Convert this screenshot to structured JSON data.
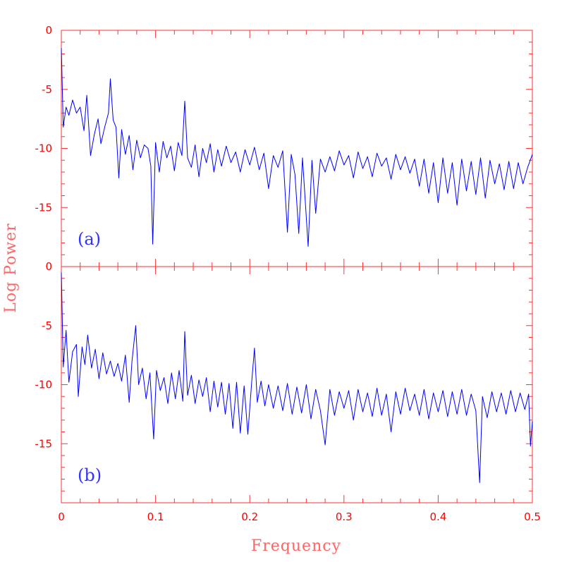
{
  "colors": {
    "axis": "#ff3333",
    "tick_text": "#ff0000",
    "axis_title": "#ff6666",
    "series": "#0000ff",
    "panel_label": "#3333ff"
  },
  "chart_data": {
    "type": "line",
    "xlabel": "Frequency",
    "ylabel": "Log Power",
    "xlim": [
      0,
      0.5
    ],
    "ylim": [
      -20,
      0
    ],
    "x_ticks": [
      "0",
      "0.1",
      "0.2",
      "0.3",
      "0.4",
      "0.5"
    ],
    "y_ticks": [
      "0",
      "-5",
      "-10",
      "-15"
    ],
    "panels": [
      {
        "label": "(a)",
        "points": [
          [
            0.0,
            -1.5
          ],
          [
            0.002,
            -8.2
          ],
          [
            0.005,
            -6.5
          ],
          [
            0.008,
            -7.2
          ],
          [
            0.012,
            -5.9
          ],
          [
            0.016,
            -7.0
          ],
          [
            0.02,
            -6.5
          ],
          [
            0.024,
            -8.5
          ],
          [
            0.027,
            -5.5
          ],
          [
            0.031,
            -10.6
          ],
          [
            0.035,
            -8.8
          ],
          [
            0.039,
            -7.5
          ],
          [
            0.042,
            -9.6
          ],
          [
            0.046,
            -8.2
          ],
          [
            0.05,
            -7.0
          ],
          [
            0.052,
            -4.1
          ],
          [
            0.055,
            -7.6
          ],
          [
            0.058,
            -8.2
          ],
          [
            0.061,
            -12.5
          ],
          [
            0.064,
            -8.4
          ],
          [
            0.068,
            -10.5
          ],
          [
            0.072,
            -8.9
          ],
          [
            0.076,
            -11.8
          ],
          [
            0.08,
            -9.3
          ],
          [
            0.084,
            -10.8
          ],
          [
            0.088,
            -9.7
          ],
          [
            0.092,
            -10.0
          ],
          [
            0.095,
            -11.5
          ],
          [
            0.097,
            -18.1
          ],
          [
            0.1,
            -9.5
          ],
          [
            0.104,
            -12.0
          ],
          [
            0.108,
            -9.4
          ],
          [
            0.112,
            -10.8
          ],
          [
            0.116,
            -9.8
          ],
          [
            0.12,
            -11.9
          ],
          [
            0.124,
            -9.5
          ],
          [
            0.128,
            -10.6
          ],
          [
            0.131,
            -6.0
          ],
          [
            0.134,
            -10.8
          ],
          [
            0.138,
            -11.6
          ],
          [
            0.142,
            -9.7
          ],
          [
            0.146,
            -12.4
          ],
          [
            0.15,
            -10.0
          ],
          [
            0.154,
            -11.2
          ],
          [
            0.158,
            -9.6
          ],
          [
            0.162,
            -12.0
          ],
          [
            0.166,
            -10.1
          ],
          [
            0.17,
            -11.5
          ],
          [
            0.175,
            -9.8
          ],
          [
            0.18,
            -11.2
          ],
          [
            0.185,
            -10.3
          ],
          [
            0.19,
            -12.0
          ],
          [
            0.195,
            -10.1
          ],
          [
            0.2,
            -11.4
          ],
          [
            0.205,
            -9.9
          ],
          [
            0.21,
            -11.8
          ],
          [
            0.215,
            -10.4
          ],
          [
            0.22,
            -13.4
          ],
          [
            0.225,
            -10.6
          ],
          [
            0.23,
            -11.6
          ],
          [
            0.235,
            -10.2
          ],
          [
            0.24,
            -17.1
          ],
          [
            0.244,
            -10.5
          ],
          [
            0.248,
            -12.2
          ],
          [
            0.252,
            -17.2
          ],
          [
            0.256,
            -10.8
          ],
          [
            0.262,
            -18.3
          ],
          [
            0.266,
            -11.0
          ],
          [
            0.27,
            -15.5
          ],
          [
            0.275,
            -10.9
          ],
          [
            0.28,
            -12.0
          ],
          [
            0.285,
            -10.7
          ],
          [
            0.29,
            -11.9
          ],
          [
            0.295,
            -10.2
          ],
          [
            0.3,
            -11.4
          ],
          [
            0.305,
            -10.6
          ],
          [
            0.31,
            -12.5
          ],
          [
            0.315,
            -10.3
          ],
          [
            0.32,
            -11.7
          ],
          [
            0.325,
            -10.7
          ],
          [
            0.33,
            -12.4
          ],
          [
            0.335,
            -10.4
          ],
          [
            0.34,
            -11.5
          ],
          [
            0.345,
            -10.8
          ],
          [
            0.35,
            -12.6
          ],
          [
            0.355,
            -10.5
          ],
          [
            0.36,
            -11.8
          ],
          [
            0.365,
            -10.7
          ],
          [
            0.37,
            -12.1
          ],
          [
            0.375,
            -10.9
          ],
          [
            0.38,
            -13.2
          ],
          [
            0.385,
            -10.9
          ],
          [
            0.39,
            -13.8
          ],
          [
            0.395,
            -11.2
          ],
          [
            0.4,
            -14.6
          ],
          [
            0.405,
            -10.8
          ],
          [
            0.41,
            -13.8
          ],
          [
            0.415,
            -11.2
          ],
          [
            0.42,
            -14.8
          ],
          [
            0.425,
            -10.9
          ],
          [
            0.43,
            -13.6
          ],
          [
            0.435,
            -11.1
          ],
          [
            0.44,
            -13.9
          ],
          [
            0.445,
            -10.8
          ],
          [
            0.45,
            -14.2
          ],
          [
            0.455,
            -11.0
          ],
          [
            0.46,
            -13.0
          ],
          [
            0.465,
            -11.3
          ],
          [
            0.47,
            -13.5
          ],
          [
            0.475,
            -11.1
          ],
          [
            0.48,
            -13.4
          ],
          [
            0.485,
            -11.2
          ],
          [
            0.49,
            -13.0
          ],
          [
            0.495,
            -11.6
          ],
          [
            0.5,
            -10.5
          ]
        ]
      },
      {
        "label": "(b)",
        "points": [
          [
            0.0,
            -0.5
          ],
          [
            0.002,
            -8.5
          ],
          [
            0.005,
            -5.4
          ],
          [
            0.008,
            -9.8
          ],
          [
            0.012,
            -7.2
          ],
          [
            0.016,
            -6.6
          ],
          [
            0.018,
            -11.0
          ],
          [
            0.022,
            -6.8
          ],
          [
            0.025,
            -8.3
          ],
          [
            0.028,
            -5.8
          ],
          [
            0.032,
            -8.6
          ],
          [
            0.036,
            -7.0
          ],
          [
            0.04,
            -9.5
          ],
          [
            0.044,
            -7.3
          ],
          [
            0.048,
            -9.1
          ],
          [
            0.052,
            -8.0
          ],
          [
            0.056,
            -9.3
          ],
          [
            0.06,
            -8.2
          ],
          [
            0.064,
            -9.7
          ],
          [
            0.068,
            -7.5
          ],
          [
            0.072,
            -11.5
          ],
          [
            0.075,
            -8.0
          ],
          [
            0.079,
            -5.0
          ],
          [
            0.082,
            -10.0
          ],
          [
            0.086,
            -8.6
          ],
          [
            0.09,
            -11.2
          ],
          [
            0.094,
            -9.0
          ],
          [
            0.098,
            -14.6
          ],
          [
            0.101,
            -8.8
          ],
          [
            0.105,
            -10.5
          ],
          [
            0.109,
            -9.4
          ],
          [
            0.113,
            -11.6
          ],
          [
            0.117,
            -9.0
          ],
          [
            0.121,
            -11.2
          ],
          [
            0.125,
            -8.8
          ],
          [
            0.129,
            -11.4
          ],
          [
            0.131,
            -5.5
          ],
          [
            0.134,
            -10.9
          ],
          [
            0.138,
            -9.2
          ],
          [
            0.142,
            -11.6
          ],
          [
            0.146,
            -9.6
          ],
          [
            0.15,
            -11.0
          ],
          [
            0.154,
            -9.4
          ],
          [
            0.158,
            -12.3
          ],
          [
            0.162,
            -9.7
          ],
          [
            0.166,
            -11.9
          ],
          [
            0.17,
            -9.8
          ],
          [
            0.174,
            -12.5
          ],
          [
            0.178,
            -9.9
          ],
          [
            0.182,
            -13.7
          ],
          [
            0.186,
            -9.8
          ],
          [
            0.19,
            -14.1
          ],
          [
            0.194,
            -10.1
          ],
          [
            0.198,
            -14.2
          ],
          [
            0.202,
            -9.8
          ],
          [
            0.205,
            -6.9
          ],
          [
            0.208,
            -11.5
          ],
          [
            0.212,
            -9.7
          ],
          [
            0.216,
            -11.8
          ],
          [
            0.22,
            -10.0
          ],
          [
            0.225,
            -12.0
          ],
          [
            0.23,
            -10.1
          ],
          [
            0.235,
            -12.2
          ],
          [
            0.24,
            -9.9
          ],
          [
            0.245,
            -12.5
          ],
          [
            0.25,
            -10.2
          ],
          [
            0.255,
            -12.4
          ],
          [
            0.26,
            -10.0
          ],
          [
            0.265,
            -12.9
          ],
          [
            0.27,
            -10.4
          ],
          [
            0.275,
            -12.2
          ],
          [
            0.28,
            -15.1
          ],
          [
            0.285,
            -10.4
          ],
          [
            0.29,
            -12.6
          ],
          [
            0.295,
            -10.6
          ],
          [
            0.3,
            -12.0
          ],
          [
            0.305,
            -10.5
          ],
          [
            0.31,
            -13.0
          ],
          [
            0.315,
            -10.4
          ],
          [
            0.32,
            -12.3
          ],
          [
            0.325,
            -10.7
          ],
          [
            0.33,
            -12.7
          ],
          [
            0.335,
            -10.3
          ],
          [
            0.34,
            -12.6
          ],
          [
            0.345,
            -10.8
          ],
          [
            0.35,
            -14.0
          ],
          [
            0.355,
            -10.6
          ],
          [
            0.36,
            -12.5
          ],
          [
            0.365,
            -10.3
          ],
          [
            0.37,
            -12.2
          ],
          [
            0.375,
            -10.8
          ],
          [
            0.38,
            -12.6
          ],
          [
            0.385,
            -10.4
          ],
          [
            0.39,
            -12.9
          ],
          [
            0.395,
            -10.7
          ],
          [
            0.4,
            -12.3
          ],
          [
            0.405,
            -10.5
          ],
          [
            0.41,
            -12.7
          ],
          [
            0.415,
            -10.6
          ],
          [
            0.42,
            -12.5
          ],
          [
            0.425,
            -10.4
          ],
          [
            0.43,
            -12.6
          ],
          [
            0.435,
            -10.8
          ],
          [
            0.44,
            -12.2
          ],
          [
            0.444,
            -18.3
          ],
          [
            0.447,
            -11.0
          ],
          [
            0.452,
            -12.8
          ],
          [
            0.457,
            -10.6
          ],
          [
            0.462,
            -12.3
          ],
          [
            0.467,
            -10.7
          ],
          [
            0.472,
            -12.5
          ],
          [
            0.477,
            -10.5
          ],
          [
            0.482,
            -12.3
          ],
          [
            0.487,
            -10.7
          ],
          [
            0.492,
            -12.1
          ],
          [
            0.496,
            -10.8
          ],
          [
            0.498,
            -15.2
          ],
          [
            0.5,
            -13.1
          ]
        ]
      }
    ]
  }
}
